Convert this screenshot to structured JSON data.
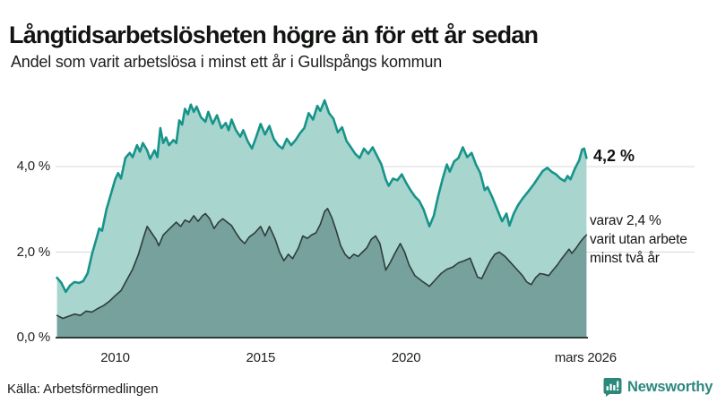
{
  "header": {
    "title": "Långtidsarbetslösheten högre än för ett år sedan",
    "subtitle": "Andel som varit arbetslösa i minst ett år i Gullspångs kommun"
  },
  "footer": {
    "source": "Källa: Arbetsförmedlingen",
    "brand": "Newsworthy"
  },
  "colors": {
    "accent_line": "#17948a",
    "accent_fill": "#a9d5cf",
    "dark_line": "#2e3d3c",
    "dark_fill": "#76a19c",
    "gridline": "#d8d8d8",
    "brand": "#2b887d"
  },
  "chart_data": {
    "type": "area",
    "title": "Långtidsarbetslösheten högre än för ett år sedan",
    "subtitle": "Andel som varit arbetslösa i minst ett år i Gullspångs kommun",
    "x_domain": [
      2007.95,
      2026.25
    ],
    "ylim": [
      0,
      5.8
    ],
    "grid": true,
    "y_axis": {
      "ticks": [
        {
          "v": 4,
          "label": "4,0 %"
        },
        {
          "v": 2,
          "label": "2,0 %"
        },
        {
          "v": 0,
          "label": "0,0 %"
        }
      ]
    },
    "x_axis": {
      "ticks": [
        {
          "v": 2010,
          "label": "2010"
        },
        {
          "v": 2015,
          "label": "2015"
        },
        {
          "v": 2020,
          "label": "2020"
        },
        {
          "v": 2026.17,
          "label": "mars 2026"
        }
      ]
    },
    "series": [
      {
        "name": "Andel arbetslösa minst ett år",
        "line_color": "#17948a",
        "fill_color": "#a9d5cf",
        "line_width": 2.6,
        "latest_value": 4.2,
        "points": [
          [
            2008.0,
            1.4
          ],
          [
            2008.15,
            1.28
          ],
          [
            2008.3,
            1.07
          ],
          [
            2008.45,
            1.22
          ],
          [
            2008.6,
            1.3
          ],
          [
            2008.75,
            1.28
          ],
          [
            2008.9,
            1.32
          ],
          [
            2009.05,
            1.5
          ],
          [
            2009.2,
            1.95
          ],
          [
            2009.35,
            2.3
          ],
          [
            2009.45,
            2.55
          ],
          [
            2009.55,
            2.5
          ],
          [
            2009.7,
            3.0
          ],
          [
            2009.85,
            3.35
          ],
          [
            2010.0,
            3.7
          ],
          [
            2010.1,
            3.85
          ],
          [
            2010.2,
            3.72
          ],
          [
            2010.35,
            4.2
          ],
          [
            2010.5,
            4.32
          ],
          [
            2010.6,
            4.22
          ],
          [
            2010.75,
            4.5
          ],
          [
            2010.85,
            4.35
          ],
          [
            2010.95,
            4.55
          ],
          [
            2011.1,
            4.38
          ],
          [
            2011.2,
            4.18
          ],
          [
            2011.35,
            4.38
          ],
          [
            2011.45,
            4.22
          ],
          [
            2011.55,
            4.9
          ],
          [
            2011.65,
            4.55
          ],
          [
            2011.75,
            4.68
          ],
          [
            2011.85,
            4.5
          ],
          [
            2012.0,
            4.62
          ],
          [
            2012.1,
            4.55
          ],
          [
            2012.2,
            5.08
          ],
          [
            2012.3,
            4.98
          ],
          [
            2012.4,
            5.35
          ],
          [
            2012.5,
            5.22
          ],
          [
            2012.6,
            5.45
          ],
          [
            2012.7,
            5.28
          ],
          [
            2012.8,
            5.4
          ],
          [
            2012.95,
            5.15
          ],
          [
            2013.1,
            5.05
          ],
          [
            2013.2,
            5.28
          ],
          [
            2013.35,
            5.0
          ],
          [
            2013.5,
            5.2
          ],
          [
            2013.65,
            4.9
          ],
          [
            2013.8,
            5.02
          ],
          [
            2013.9,
            4.85
          ],
          [
            2014.0,
            5.1
          ],
          [
            2014.15,
            4.85
          ],
          [
            2014.3,
            4.7
          ],
          [
            2014.4,
            4.85
          ],
          [
            2014.55,
            4.6
          ],
          [
            2014.7,
            4.42
          ],
          [
            2014.85,
            4.7
          ],
          [
            2015.0,
            5.0
          ],
          [
            2015.15,
            4.75
          ],
          [
            2015.3,
            4.95
          ],
          [
            2015.45,
            4.65
          ],
          [
            2015.6,
            4.5
          ],
          [
            2015.75,
            4.42
          ],
          [
            2015.9,
            4.65
          ],
          [
            2016.05,
            4.5
          ],
          [
            2016.2,
            4.62
          ],
          [
            2016.35,
            4.78
          ],
          [
            2016.5,
            4.9
          ],
          [
            2016.65,
            5.25
          ],
          [
            2016.8,
            5.1
          ],
          [
            2016.95,
            5.42
          ],
          [
            2017.05,
            5.3
          ],
          [
            2017.2,
            5.55
          ],
          [
            2017.35,
            5.25
          ],
          [
            2017.5,
            5.12
          ],
          [
            2017.65,
            4.8
          ],
          [
            2017.8,
            4.92
          ],
          [
            2017.95,
            4.6
          ],
          [
            2018.1,
            4.45
          ],
          [
            2018.25,
            4.3
          ],
          [
            2018.4,
            4.2
          ],
          [
            2018.55,
            4.42
          ],
          [
            2018.7,
            4.3
          ],
          [
            2018.85,
            4.45
          ],
          [
            2019.0,
            4.25
          ],
          [
            2019.15,
            4.05
          ],
          [
            2019.3,
            3.7
          ],
          [
            2019.4,
            3.55
          ],
          [
            2019.55,
            3.72
          ],
          [
            2019.7,
            3.68
          ],
          [
            2019.85,
            3.82
          ],
          [
            2020.0,
            3.62
          ],
          [
            2020.15,
            3.45
          ],
          [
            2020.3,
            3.3
          ],
          [
            2020.45,
            3.2
          ],
          [
            2020.6,
            3.0
          ],
          [
            2020.8,
            2.6
          ],
          [
            2020.95,
            2.85
          ],
          [
            2021.1,
            3.3
          ],
          [
            2021.25,
            3.7
          ],
          [
            2021.4,
            4.05
          ],
          [
            2021.5,
            3.88
          ],
          [
            2021.65,
            4.12
          ],
          [
            2021.8,
            4.2
          ],
          [
            2021.95,
            4.45
          ],
          [
            2022.1,
            4.22
          ],
          [
            2022.25,
            4.32
          ],
          [
            2022.4,
            4.05
          ],
          [
            2022.55,
            3.85
          ],
          [
            2022.7,
            3.45
          ],
          [
            2022.8,
            3.52
          ],
          [
            2022.95,
            3.3
          ],
          [
            2023.1,
            3.05
          ],
          [
            2023.3,
            2.72
          ],
          [
            2023.45,
            2.9
          ],
          [
            2023.55,
            2.62
          ],
          [
            2023.7,
            2.9
          ],
          [
            2023.85,
            3.1
          ],
          [
            2024.0,
            3.25
          ],
          [
            2024.2,
            3.42
          ],
          [
            2024.4,
            3.6
          ],
          [
            2024.55,
            3.75
          ],
          [
            2024.7,
            3.9
          ],
          [
            2024.85,
            3.97
          ],
          [
            2025.0,
            3.88
          ],
          [
            2025.15,
            3.82
          ],
          [
            2025.3,
            3.72
          ],
          [
            2025.45,
            3.66
          ],
          [
            2025.55,
            3.78
          ],
          [
            2025.65,
            3.7
          ],
          [
            2025.8,
            3.95
          ],
          [
            2025.95,
            4.15
          ],
          [
            2026.05,
            4.4
          ],
          [
            2026.12,
            4.42
          ],
          [
            2026.2,
            4.2
          ]
        ]
      },
      {
        "name": "Andel arbetslösa minst två år",
        "line_color": "#2e3d3c",
        "fill_color": "#76a19c",
        "line_width": 1.6,
        "latest_value": 2.4,
        "points": [
          [
            2008.0,
            0.52
          ],
          [
            2008.2,
            0.45
          ],
          [
            2008.4,
            0.5
          ],
          [
            2008.6,
            0.55
          ],
          [
            2008.8,
            0.52
          ],
          [
            2009.0,
            0.62
          ],
          [
            2009.2,
            0.6
          ],
          [
            2009.4,
            0.68
          ],
          [
            2009.6,
            0.75
          ],
          [
            2009.8,
            0.85
          ],
          [
            2010.0,
            0.98
          ],
          [
            2010.2,
            1.1
          ],
          [
            2010.4,
            1.35
          ],
          [
            2010.6,
            1.6
          ],
          [
            2010.8,
            1.95
          ],
          [
            2011.0,
            2.4
          ],
          [
            2011.1,
            2.6
          ],
          [
            2011.25,
            2.45
          ],
          [
            2011.4,
            2.3
          ],
          [
            2011.5,
            2.15
          ],
          [
            2011.65,
            2.4
          ],
          [
            2011.8,
            2.5
          ],
          [
            2011.95,
            2.6
          ],
          [
            2012.1,
            2.7
          ],
          [
            2012.25,
            2.6
          ],
          [
            2012.4,
            2.75
          ],
          [
            2012.55,
            2.7
          ],
          [
            2012.7,
            2.85
          ],
          [
            2012.85,
            2.72
          ],
          [
            2013.0,
            2.85
          ],
          [
            2013.1,
            2.9
          ],
          [
            2013.25,
            2.78
          ],
          [
            2013.4,
            2.55
          ],
          [
            2013.55,
            2.7
          ],
          [
            2013.7,
            2.78
          ],
          [
            2013.85,
            2.7
          ],
          [
            2014.0,
            2.62
          ],
          [
            2014.15,
            2.45
          ],
          [
            2014.3,
            2.3
          ],
          [
            2014.45,
            2.2
          ],
          [
            2014.6,
            2.35
          ],
          [
            2014.8,
            2.45
          ],
          [
            2015.0,
            2.6
          ],
          [
            2015.15,
            2.38
          ],
          [
            2015.3,
            2.6
          ],
          [
            2015.5,
            2.3
          ],
          [
            2015.65,
            2.0
          ],
          [
            2015.8,
            1.8
          ],
          [
            2015.95,
            1.95
          ],
          [
            2016.1,
            1.85
          ],
          [
            2016.3,
            2.1
          ],
          [
            2016.45,
            2.38
          ],
          [
            2016.6,
            2.32
          ],
          [
            2016.75,
            2.4
          ],
          [
            2016.9,
            2.45
          ],
          [
            2017.05,
            2.65
          ],
          [
            2017.2,
            2.95
          ],
          [
            2017.3,
            3.02
          ],
          [
            2017.45,
            2.8
          ],
          [
            2017.6,
            2.5
          ],
          [
            2017.75,
            2.15
          ],
          [
            2017.9,
            1.95
          ],
          [
            2018.05,
            1.85
          ],
          [
            2018.2,
            1.95
          ],
          [
            2018.35,
            1.9
          ],
          [
            2018.5,
            2.0
          ],
          [
            2018.65,
            2.1
          ],
          [
            2018.8,
            2.3
          ],
          [
            2018.95,
            2.38
          ],
          [
            2019.1,
            2.2
          ],
          [
            2019.3,
            1.58
          ],
          [
            2019.45,
            1.75
          ],
          [
            2019.6,
            1.95
          ],
          [
            2019.8,
            2.2
          ],
          [
            2019.95,
            2.0
          ],
          [
            2020.1,
            1.7
          ],
          [
            2020.3,
            1.45
          ],
          [
            2020.55,
            1.32
          ],
          [
            2020.8,
            1.2
          ],
          [
            2021.0,
            1.35
          ],
          [
            2021.2,
            1.5
          ],
          [
            2021.4,
            1.6
          ],
          [
            2021.6,
            1.65
          ],
          [
            2021.8,
            1.75
          ],
          [
            2022.0,
            1.8
          ],
          [
            2022.2,
            1.86
          ],
          [
            2022.35,
            1.6
          ],
          [
            2022.45,
            1.42
          ],
          [
            2022.6,
            1.38
          ],
          [
            2022.75,
            1.6
          ],
          [
            2022.9,
            1.8
          ],
          [
            2023.05,
            1.95
          ],
          [
            2023.2,
            2.0
          ],
          [
            2023.4,
            1.9
          ],
          [
            2023.6,
            1.75
          ],
          [
            2023.8,
            1.6
          ],
          [
            2024.0,
            1.45
          ],
          [
            2024.15,
            1.3
          ],
          [
            2024.3,
            1.24
          ],
          [
            2024.45,
            1.4
          ],
          [
            2024.6,
            1.5
          ],
          [
            2024.75,
            1.48
          ],
          [
            2024.9,
            1.45
          ],
          [
            2025.05,
            1.58
          ],
          [
            2025.2,
            1.7
          ],
          [
            2025.35,
            1.85
          ],
          [
            2025.5,
            1.98
          ],
          [
            2025.6,
            2.07
          ],
          [
            2025.7,
            1.97
          ],
          [
            2025.85,
            2.1
          ],
          [
            2026.0,
            2.25
          ],
          [
            2026.1,
            2.33
          ],
          [
            2026.2,
            2.4
          ]
        ]
      }
    ],
    "annotations": {
      "latest_value": "4,2 %",
      "note_lines": [
        "varav 2,4 %",
        "varit utan arbete",
        "minst två år"
      ]
    }
  }
}
